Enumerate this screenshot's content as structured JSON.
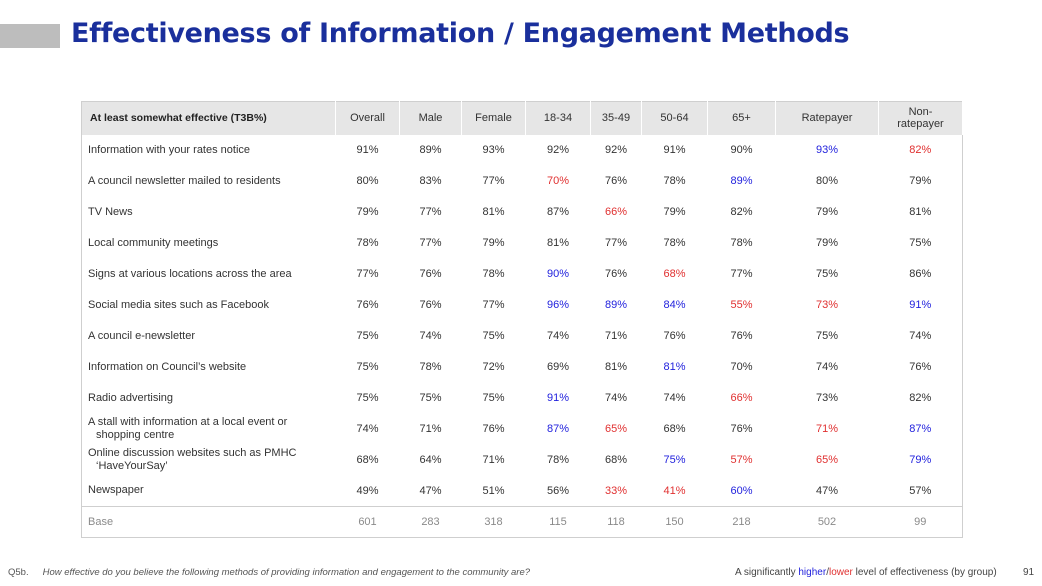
{
  "title": "Effectiveness of Information / Engagement Methods",
  "table": {
    "header_label": "At least somewhat effective (T3B%)",
    "columns": [
      "Overall",
      "Male",
      "Female",
      "18-34",
      "35-49",
      "50-64",
      "65+",
      "Ratepayer",
      "Non-\nratepayer"
    ],
    "rows": [
      {
        "label": "Information with your rates notice",
        "cells": [
          [
            "91%",
            "n"
          ],
          [
            "89%",
            "n"
          ],
          [
            "93%",
            "n"
          ],
          [
            "92%",
            "n"
          ],
          [
            "92%",
            "n"
          ],
          [
            "91%",
            "n"
          ],
          [
            "90%",
            "n"
          ],
          [
            "93%",
            "h"
          ],
          [
            "82%",
            "l"
          ]
        ]
      },
      {
        "label": "A council newsletter mailed to residents",
        "cells": [
          [
            "80%",
            "n"
          ],
          [
            "83%",
            "n"
          ],
          [
            "77%",
            "n"
          ],
          [
            "70%",
            "l"
          ],
          [
            "76%",
            "n"
          ],
          [
            "78%",
            "n"
          ],
          [
            "89%",
            "h"
          ],
          [
            "80%",
            "n"
          ],
          [
            "79%",
            "n"
          ]
        ]
      },
      {
        "label": "TV News",
        "cells": [
          [
            "79%",
            "n"
          ],
          [
            "77%",
            "n"
          ],
          [
            "81%",
            "n"
          ],
          [
            "87%",
            "n"
          ],
          [
            "66%",
            "l"
          ],
          [
            "79%",
            "n"
          ],
          [
            "82%",
            "n"
          ],
          [
            "79%",
            "n"
          ],
          [
            "81%",
            "n"
          ]
        ]
      },
      {
        "label": "Local community meetings",
        "cells": [
          [
            "78%",
            "n"
          ],
          [
            "77%",
            "n"
          ],
          [
            "79%",
            "n"
          ],
          [
            "81%",
            "n"
          ],
          [
            "77%",
            "n"
          ],
          [
            "78%",
            "n"
          ],
          [
            "78%",
            "n"
          ],
          [
            "79%",
            "n"
          ],
          [
            "75%",
            "n"
          ]
        ]
      },
      {
        "label": "Signs at various locations across the area",
        "cells": [
          [
            "77%",
            "n"
          ],
          [
            "76%",
            "n"
          ],
          [
            "78%",
            "n"
          ],
          [
            "90%",
            "h"
          ],
          [
            "76%",
            "n"
          ],
          [
            "68%",
            "l"
          ],
          [
            "77%",
            "n"
          ],
          [
            "75%",
            "n"
          ],
          [
            "86%",
            "n"
          ]
        ]
      },
      {
        "label": "Social media sites such as Facebook",
        "cells": [
          [
            "76%",
            "n"
          ],
          [
            "76%",
            "n"
          ],
          [
            "77%",
            "n"
          ],
          [
            "96%",
            "h"
          ],
          [
            "89%",
            "h"
          ],
          [
            "84%",
            "h"
          ],
          [
            "55%",
            "l"
          ],
          [
            "73%",
            "l"
          ],
          [
            "91%",
            "h"
          ]
        ]
      },
      {
        "label": "A council e-newsletter",
        "cells": [
          [
            "75%",
            "n"
          ],
          [
            "74%",
            "n"
          ],
          [
            "75%",
            "n"
          ],
          [
            "74%",
            "n"
          ],
          [
            "71%",
            "n"
          ],
          [
            "76%",
            "n"
          ],
          [
            "76%",
            "n"
          ],
          [
            "75%",
            "n"
          ],
          [
            "74%",
            "n"
          ]
        ]
      },
      {
        "label": "Information on Council’s website",
        "cells": [
          [
            "75%",
            "n"
          ],
          [
            "78%",
            "n"
          ],
          [
            "72%",
            "n"
          ],
          [
            "69%",
            "n"
          ],
          [
            "81%",
            "n"
          ],
          [
            "81%",
            "h"
          ],
          [
            "70%",
            "n"
          ],
          [
            "74%",
            "n"
          ],
          [
            "76%",
            "n"
          ]
        ]
      },
      {
        "label": "Radio advertising",
        "cells": [
          [
            "75%",
            "n"
          ],
          [
            "75%",
            "n"
          ],
          [
            "75%",
            "n"
          ],
          [
            "91%",
            "h"
          ],
          [
            "74%",
            "n"
          ],
          [
            "74%",
            "n"
          ],
          [
            "66%",
            "l"
          ],
          [
            "73%",
            "n"
          ],
          [
            "82%",
            "n"
          ]
        ]
      },
      {
        "label": "A stall with information at a local event or",
        "label2": "shopping centre",
        "cells": [
          [
            "74%",
            "n"
          ],
          [
            "71%",
            "n"
          ],
          [
            "76%",
            "n"
          ],
          [
            "87%",
            "h"
          ],
          [
            "65%",
            "l"
          ],
          [
            "68%",
            "n"
          ],
          [
            "76%",
            "n"
          ],
          [
            "71%",
            "l"
          ],
          [
            "87%",
            "h"
          ]
        ]
      },
      {
        "label": "Online discussion websites such as PMHC",
        "label2": "‘HaveYourSay’",
        "cells": [
          [
            "68%",
            "n"
          ],
          [
            "64%",
            "n"
          ],
          [
            "71%",
            "n"
          ],
          [
            "78%",
            "n"
          ],
          [
            "68%",
            "n"
          ],
          [
            "75%",
            "h"
          ],
          [
            "57%",
            "l"
          ],
          [
            "65%",
            "l"
          ],
          [
            "79%",
            "h"
          ]
        ]
      },
      {
        "label": "Newspaper",
        "cells": [
          [
            "49%",
            "n"
          ],
          [
            "47%",
            "n"
          ],
          [
            "51%",
            "n"
          ],
          [
            "56%",
            "n"
          ],
          [
            "33%",
            "l"
          ],
          [
            "41%",
            "l"
          ],
          [
            "60%",
            "h"
          ],
          [
            "47%",
            "n"
          ],
          [
            "57%",
            "n"
          ]
        ]
      }
    ],
    "base": {
      "label": "Base",
      "values": [
        "601",
        "283",
        "318",
        "115",
        "118",
        "150",
        "218",
        "502",
        "99"
      ]
    }
  },
  "colors": {
    "title": "#1a2f9c",
    "higher": "#2222dd",
    "lower": "#e03030",
    "header_bg": "#e6e6e6"
  },
  "footer": {
    "question_number": "Q5b.",
    "question_text": "How effective do you believe the following methods of providing information and engagement to the community are?",
    "legend_prefix": "A significantly ",
    "legend_higher": "higher",
    "legend_sep": "/",
    "legend_lower": "lower",
    "legend_suffix": " level of effectiveness (by group)",
    "page_number": "91"
  }
}
